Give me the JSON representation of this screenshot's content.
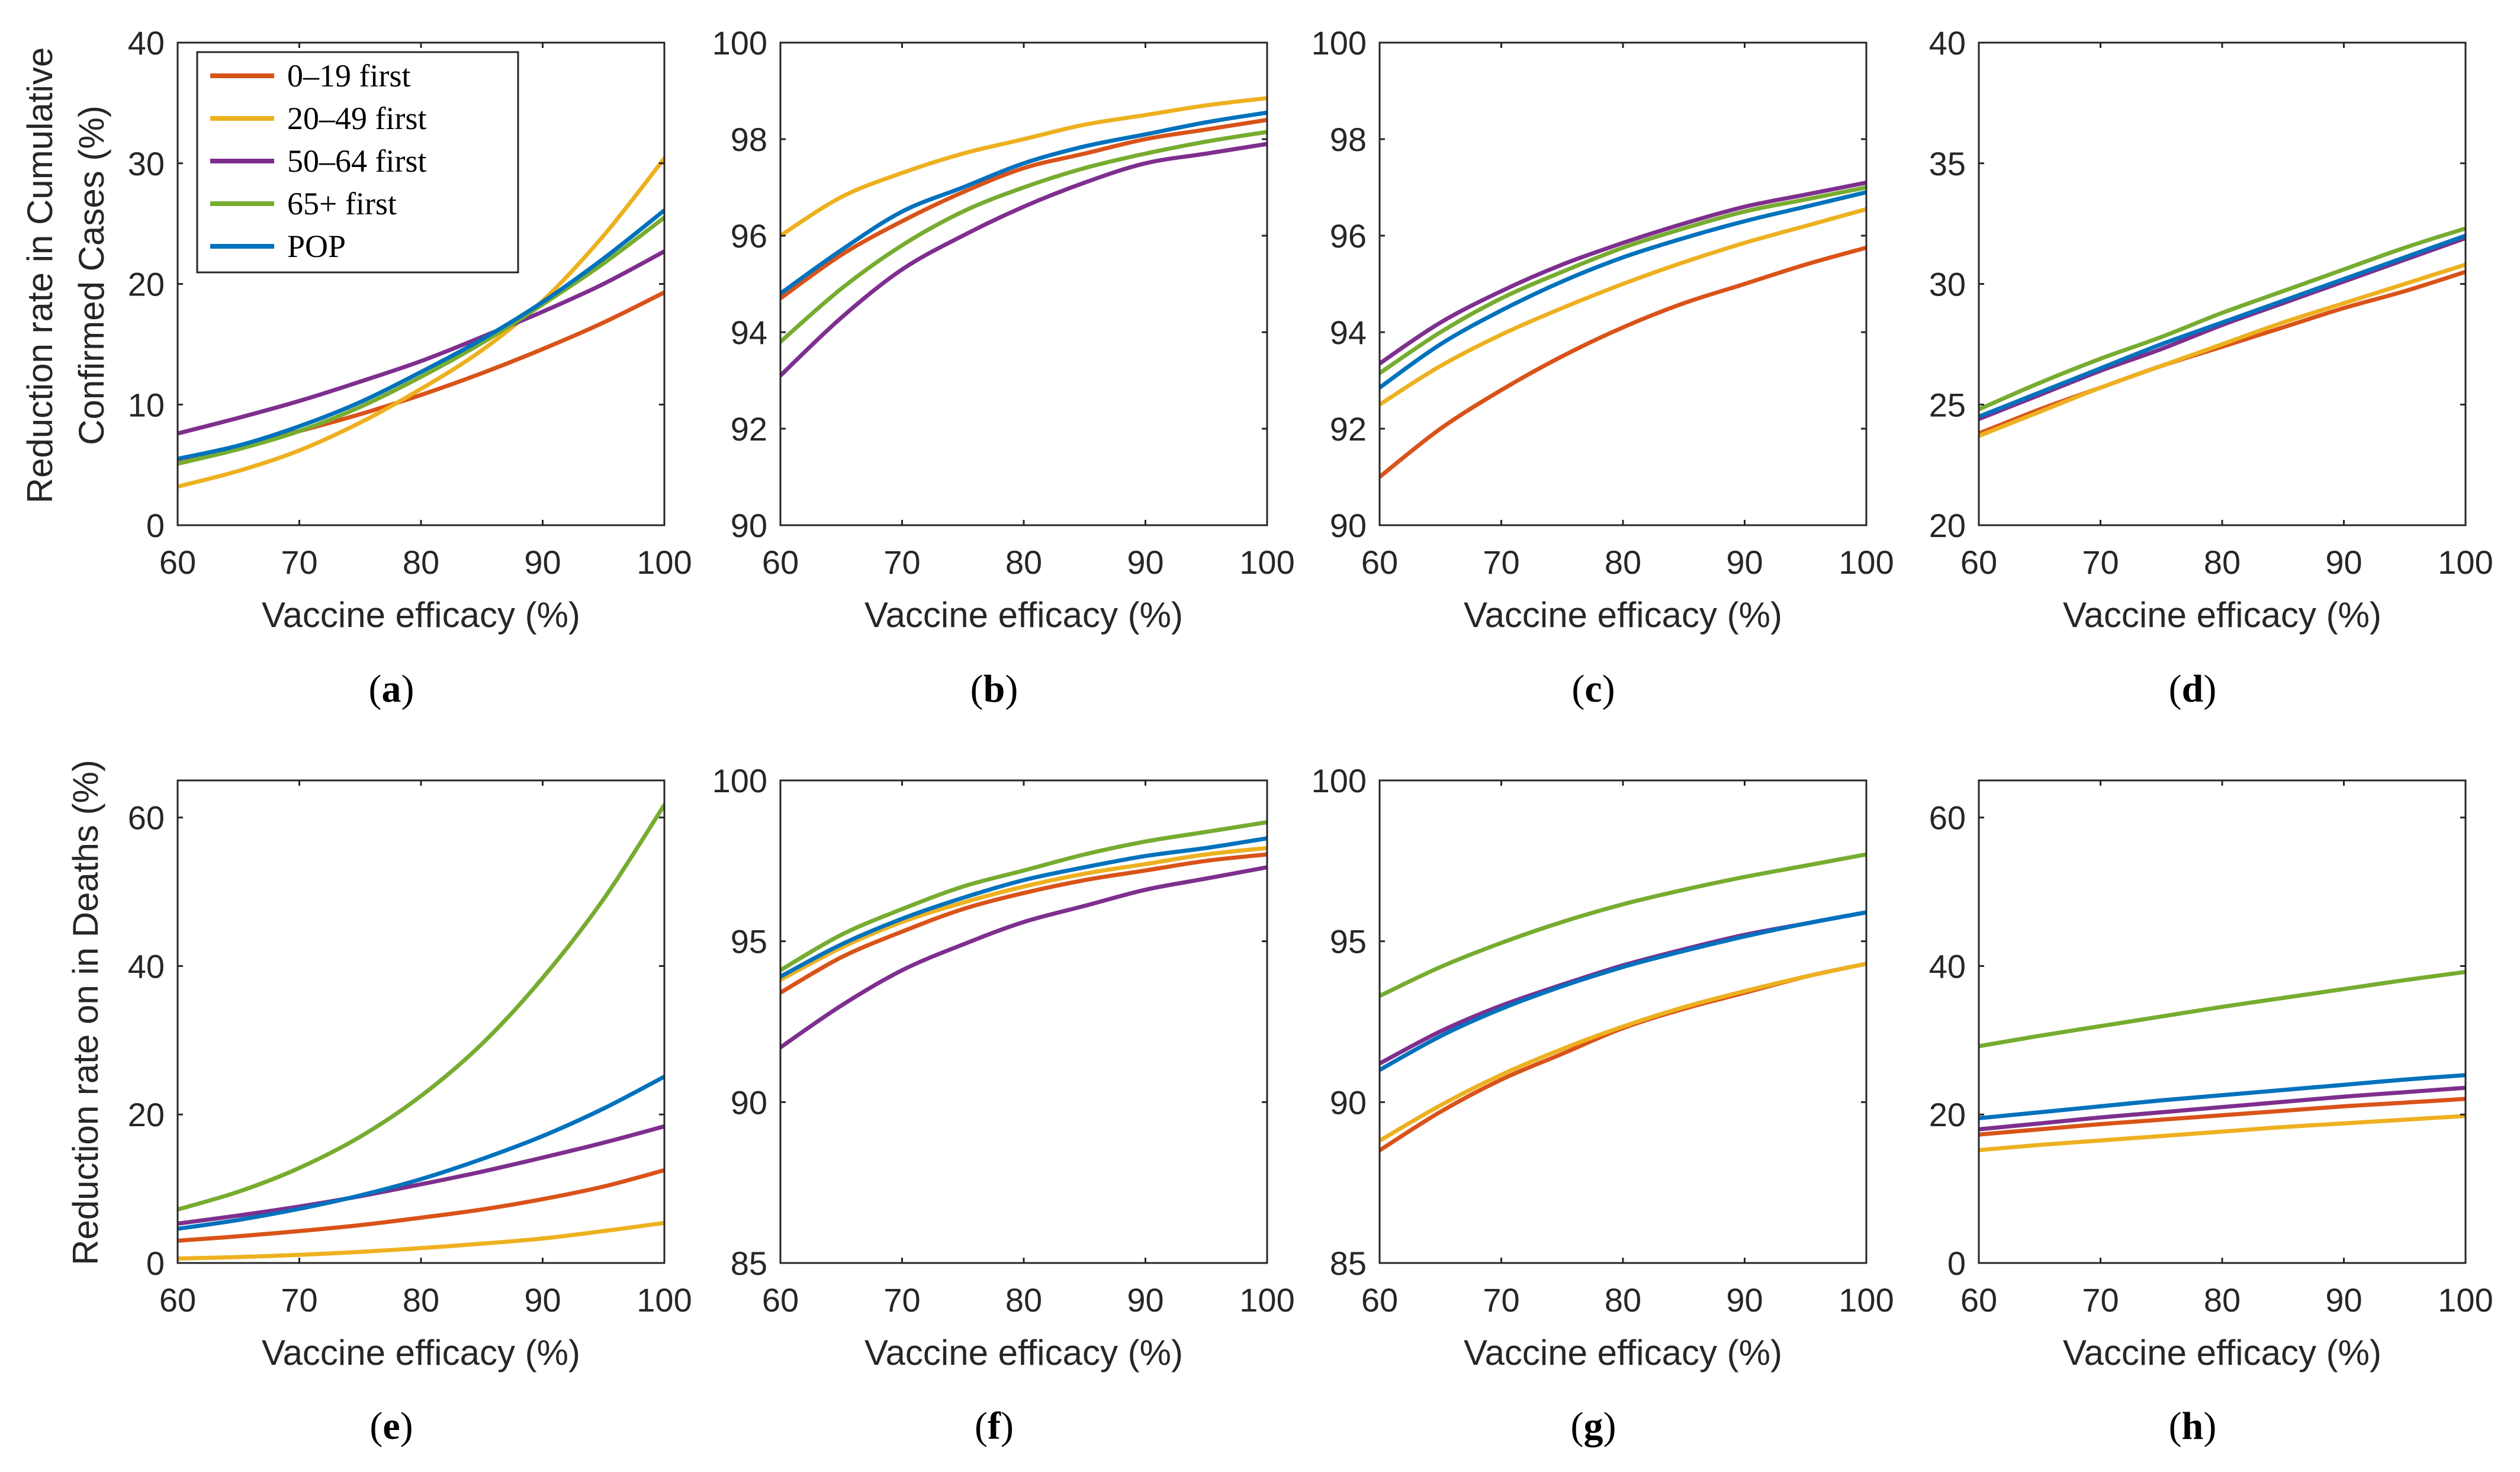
{
  "figure": {
    "row1_ylabel_line1": "Reduction rate in Cumulative",
    "row1_ylabel_line2": "Confirmed Cases (%)",
    "row2_ylabel": "Reduction rate on in Deaths (%)",
    "legend": [
      {
        "label": "0–19 first",
        "color": "#D95319"
      },
      {
        "label": "20–49 first",
        "color": "#EDB120"
      },
      {
        "label": "50–64 first",
        "color": "#7E2F8E"
      },
      {
        "label": "65+ first",
        "color": "#77AC30"
      },
      {
        "label": "POP",
        "color": "#0072BD"
      }
    ]
  },
  "chart_data": [
    {
      "type": "line",
      "panel": "(a)",
      "row": 0,
      "col": 0,
      "xlabel": "Vaccine efficacy (%)",
      "ylabel": "Reduction rate in Cumulative Confirmed Cases (%)",
      "xlim": [
        60,
        100
      ],
      "ylim": [
        0,
        40
      ],
      "xticks": [
        60,
        70,
        80,
        90,
        100
      ],
      "yticks": [
        0,
        10,
        20,
        30,
        40
      ],
      "x": [
        60,
        65,
        70,
        75,
        80,
        85,
        90,
        95,
        100
      ],
      "series": [
        {
          "name": "0–19 first",
          "color": "#D95319",
          "values": [
            5.4,
            6.5,
            7.8,
            9.2,
            10.8,
            12.6,
            14.6,
            16.8,
            19.3
          ]
        },
        {
          "name": "20–49 first",
          "color": "#EDB120",
          "values": [
            3.2,
            4.5,
            6.2,
            8.5,
            11.3,
            14.5,
            18.6,
            24.0,
            30.4
          ]
        },
        {
          "name": "50–64 first",
          "color": "#7E2F8E",
          "values": [
            7.6,
            8.9,
            10.3,
            11.9,
            13.6,
            15.6,
            17.7,
            20.0,
            22.7
          ]
        },
        {
          "name": "65+ first",
          "color": "#77AC30",
          "values": [
            5.1,
            6.3,
            7.8,
            9.8,
            12.3,
            15.1,
            18.3,
            21.7,
            25.5
          ]
        },
        {
          "name": "POP",
          "color": "#0072BD",
          "values": [
            5.5,
            6.6,
            8.2,
            10.2,
            12.7,
            15.4,
            18.5,
            22.1,
            26.1
          ]
        }
      ]
    },
    {
      "type": "line",
      "panel": "(b)",
      "row": 0,
      "col": 1,
      "xlabel": "Vaccine efficacy (%)",
      "ylabel": "",
      "xlim": [
        60,
        100
      ],
      "ylim": [
        90,
        100
      ],
      "xticks": [
        60,
        70,
        80,
        90,
        100
      ],
      "yticks": [
        90,
        92,
        94,
        96,
        98,
        100
      ],
      "x": [
        60,
        65,
        70,
        75,
        80,
        85,
        90,
        95,
        100
      ],
      "series": [
        {
          "name": "0–19 first",
          "color": "#D95319",
          "values": [
            94.7,
            95.6,
            96.3,
            96.9,
            97.4,
            97.7,
            98.0,
            98.2,
            98.4
          ]
        },
        {
          "name": "20–49 first",
          "color": "#EDB120",
          "values": [
            96.0,
            96.8,
            97.3,
            97.7,
            98.0,
            98.3,
            98.5,
            98.7,
            98.85
          ]
        },
        {
          "name": "50–64 first",
          "color": "#7E2F8E",
          "values": [
            93.1,
            94.3,
            95.3,
            96.0,
            96.6,
            97.1,
            97.5,
            97.7,
            97.9
          ]
        },
        {
          "name": "65+ first",
          "color": "#77AC30",
          "values": [
            93.8,
            94.9,
            95.8,
            96.5,
            97.0,
            97.4,
            97.7,
            97.95,
            98.15
          ]
        },
        {
          "name": "POP",
          "color": "#0072BD",
          "values": [
            94.8,
            95.7,
            96.5,
            97.0,
            97.5,
            97.85,
            98.1,
            98.35,
            98.55
          ]
        }
      ]
    },
    {
      "type": "line",
      "panel": "(c)",
      "row": 0,
      "col": 2,
      "xlabel": "Vaccine efficacy (%)",
      "ylabel": "",
      "xlim": [
        60,
        100
      ],
      "ylim": [
        90,
        100
      ],
      "xticks": [
        60,
        70,
        80,
        90,
        100
      ],
      "yticks": [
        90,
        92,
        94,
        96,
        98,
        100
      ],
      "x": [
        60,
        65,
        70,
        75,
        80,
        85,
        90,
        95,
        100
      ],
      "series": [
        {
          "name": "0–19 first",
          "color": "#D95319",
          "values": [
            91.0,
            92.0,
            92.8,
            93.5,
            94.1,
            94.6,
            95.0,
            95.4,
            95.75
          ]
        },
        {
          "name": "20–49 first",
          "color": "#EDB120",
          "values": [
            92.5,
            93.3,
            93.95,
            94.5,
            95.0,
            95.45,
            95.85,
            96.2,
            96.55
          ]
        },
        {
          "name": "50–64 first",
          "color": "#7E2F8E",
          "values": [
            93.35,
            94.2,
            94.85,
            95.4,
            95.85,
            96.25,
            96.6,
            96.85,
            97.1
          ]
        },
        {
          "name": "65+ first",
          "color": "#77AC30",
          "values": [
            93.15,
            94.0,
            94.7,
            95.25,
            95.75,
            96.15,
            96.5,
            96.75,
            97.0
          ]
        },
        {
          "name": "POP",
          "color": "#0072BD",
          "values": [
            92.85,
            93.75,
            94.45,
            95.05,
            95.55,
            95.95,
            96.3,
            96.6,
            96.9
          ]
        }
      ]
    },
    {
      "type": "line",
      "panel": "(d)",
      "row": 0,
      "col": 3,
      "xlabel": "Vaccine efficacy (%)",
      "ylabel": "",
      "xlim": [
        60,
        100
      ],
      "ylim": [
        20,
        40
      ],
      "xticks": [
        60,
        70,
        80,
        90,
        100
      ],
      "yticks": [
        20,
        25,
        30,
        35,
        40
      ],
      "x": [
        60,
        65,
        70,
        75,
        80,
        85,
        90,
        95,
        100
      ],
      "series": [
        {
          "name": "0–19 first",
          "color": "#D95319",
          "values": [
            23.8,
            24.8,
            25.7,
            26.6,
            27.4,
            28.2,
            29.0,
            29.7,
            30.5
          ]
        },
        {
          "name": "20–49 first",
          "color": "#EDB120",
          "values": [
            23.7,
            24.7,
            25.7,
            26.6,
            27.5,
            28.4,
            29.2,
            30.0,
            30.8
          ]
        },
        {
          "name": "50–64 first",
          "color": "#7E2F8E",
          "values": [
            24.4,
            25.4,
            26.4,
            27.3,
            28.3,
            29.2,
            30.1,
            31.0,
            31.9
          ]
        },
        {
          "name": "65+ first",
          "color": "#77AC30",
          "values": [
            24.8,
            25.9,
            26.9,
            27.8,
            28.8,
            29.7,
            30.6,
            31.5,
            32.3
          ]
        },
        {
          "name": "POP",
          "color": "#0072BD",
          "values": [
            24.5,
            25.5,
            26.5,
            27.5,
            28.4,
            29.3,
            30.2,
            31.1,
            32.0
          ]
        }
      ]
    },
    {
      "type": "line",
      "panel": "(e)",
      "row": 1,
      "col": 0,
      "xlabel": "Vaccine efficacy (%)",
      "ylabel": "Reduction rate on in Deaths (%)",
      "xlim": [
        60,
        100
      ],
      "ylim": [
        0,
        65
      ],
      "xticks": [
        60,
        70,
        80,
        90,
        100
      ],
      "yticks": [
        0,
        20,
        40,
        60
      ],
      "x": [
        60,
        65,
        70,
        75,
        80,
        85,
        90,
        95,
        100
      ],
      "series": [
        {
          "name": "0–19 first",
          "color": "#D95319",
          "values": [
            3.0,
            3.6,
            4.3,
            5.1,
            6.1,
            7.2,
            8.6,
            10.3,
            12.5
          ]
        },
        {
          "name": "20–49 first",
          "color": "#EDB120",
          "values": [
            0.6,
            0.8,
            1.1,
            1.5,
            2.0,
            2.6,
            3.3,
            4.3,
            5.4
          ]
        },
        {
          "name": "50–64 first",
          "color": "#7E2F8E",
          "values": [
            5.3,
            6.4,
            7.6,
            9.0,
            10.6,
            12.3,
            14.2,
            16.2,
            18.4
          ]
        },
        {
          "name": "65+ first",
          "color": "#77AC30",
          "values": [
            7.2,
            9.6,
            12.8,
            17.0,
            22.5,
            29.5,
            38.4,
            49.0,
            61.7
          ]
        },
        {
          "name": "POP",
          "color": "#0072BD",
          "values": [
            4.6,
            5.8,
            7.3,
            9.1,
            11.3,
            14.0,
            17.1,
            20.8,
            25.1
          ]
        }
      ]
    },
    {
      "type": "line",
      "panel": "(f)",
      "row": 1,
      "col": 1,
      "xlabel": "Vaccine efficacy (%)",
      "ylabel": "",
      "xlim": [
        60,
        100
      ],
      "ylim": [
        85,
        100
      ],
      "xticks": [
        60,
        70,
        80,
        90,
        100
      ],
      "yticks": [
        85,
        90,
        95,
        100
      ],
      "x": [
        60,
        65,
        70,
        75,
        80,
        85,
        90,
        95,
        100
      ],
      "series": [
        {
          "name": "0–19 first",
          "color": "#D95319",
          "values": [
            93.4,
            94.5,
            95.3,
            96.0,
            96.5,
            96.9,
            97.2,
            97.5,
            97.7
          ]
        },
        {
          "name": "20–49 first",
          "color": "#EDB120",
          "values": [
            93.8,
            94.8,
            95.6,
            96.2,
            96.7,
            97.1,
            97.4,
            97.7,
            97.9
          ]
        },
        {
          "name": "50–64 first",
          "color": "#7E2F8E",
          "values": [
            91.7,
            93.0,
            94.1,
            94.9,
            95.6,
            96.1,
            96.6,
            96.95,
            97.3
          ]
        },
        {
          "name": "65+ first",
          "color": "#77AC30",
          "values": [
            94.1,
            95.2,
            96.0,
            96.7,
            97.2,
            97.7,
            98.1,
            98.4,
            98.7
          ]
        },
        {
          "name": "POP",
          "color": "#0072BD",
          "values": [
            93.9,
            94.9,
            95.7,
            96.35,
            96.9,
            97.3,
            97.65,
            97.9,
            98.2
          ]
        }
      ]
    },
    {
      "type": "line",
      "panel": "(g)",
      "row": 1,
      "col": 2,
      "xlabel": "Vaccine efficacy (%)",
      "ylabel": "",
      "xlim": [
        60,
        100
      ],
      "ylim": [
        85,
        100
      ],
      "xticks": [
        60,
        70,
        80,
        90,
        100
      ],
      "yticks": [
        85,
        90,
        95,
        100
      ],
      "x": [
        60,
        65,
        70,
        75,
        80,
        85,
        90,
        95,
        100
      ],
      "series": [
        {
          "name": "0–19 first",
          "color": "#D95319",
          "values": [
            88.5,
            89.7,
            90.7,
            91.5,
            92.3,
            92.9,
            93.4,
            93.9,
            94.3
          ]
        },
        {
          "name": "20–49 first",
          "color": "#EDB120",
          "values": [
            88.8,
            89.9,
            90.85,
            91.65,
            92.35,
            92.95,
            93.45,
            93.9,
            94.3
          ]
        },
        {
          "name": "50–64 first",
          "color": "#7E2F8E",
          "values": [
            91.2,
            92.2,
            93.0,
            93.65,
            94.25,
            94.75,
            95.2,
            95.55,
            95.9
          ]
        },
        {
          "name": "65+ first",
          "color": "#77AC30",
          "values": [
            93.3,
            94.2,
            94.95,
            95.6,
            96.15,
            96.6,
            97.0,
            97.35,
            97.7
          ]
        },
        {
          "name": "POP",
          "color": "#0072BD",
          "values": [
            91.0,
            92.05,
            92.9,
            93.6,
            94.2,
            94.7,
            95.15,
            95.55,
            95.9
          ]
        }
      ]
    },
    {
      "type": "line",
      "panel": "(h)",
      "row": 1,
      "col": 3,
      "xlabel": "Vaccine efficacy (%)",
      "ylabel": "",
      "xlim": [
        60,
        100
      ],
      "ylim": [
        0,
        65
      ],
      "xticks": [
        60,
        70,
        80,
        90,
        100
      ],
      "yticks": [
        0,
        20,
        40,
        60
      ],
      "x": [
        60,
        65,
        70,
        75,
        80,
        85,
        90,
        95,
        100
      ],
      "series": [
        {
          "name": "0–19 first",
          "color": "#D95319",
          "values": [
            17.3,
            18.0,
            18.7,
            19.3,
            19.9,
            20.5,
            21.1,
            21.6,
            22.1
          ]
        },
        {
          "name": "20–49 first",
          "color": "#EDB120",
          "values": [
            15.2,
            15.9,
            16.5,
            17.1,
            17.7,
            18.3,
            18.8,
            19.3,
            19.8
          ]
        },
        {
          "name": "50–64 first",
          "color": "#7E2F8E",
          "values": [
            18.0,
            18.8,
            19.6,
            20.3,
            21.0,
            21.7,
            22.4,
            23.0,
            23.6
          ]
        },
        {
          "name": "65+ first",
          "color": "#77AC30",
          "values": [
            29.2,
            30.6,
            31.9,
            33.2,
            34.5,
            35.7,
            36.9,
            38.1,
            39.2
          ]
        },
        {
          "name": "POP",
          "color": "#0072BD",
          "values": [
            19.5,
            20.3,
            21.1,
            21.9,
            22.6,
            23.3,
            24.0,
            24.7,
            25.3
          ]
        }
      ]
    }
  ]
}
